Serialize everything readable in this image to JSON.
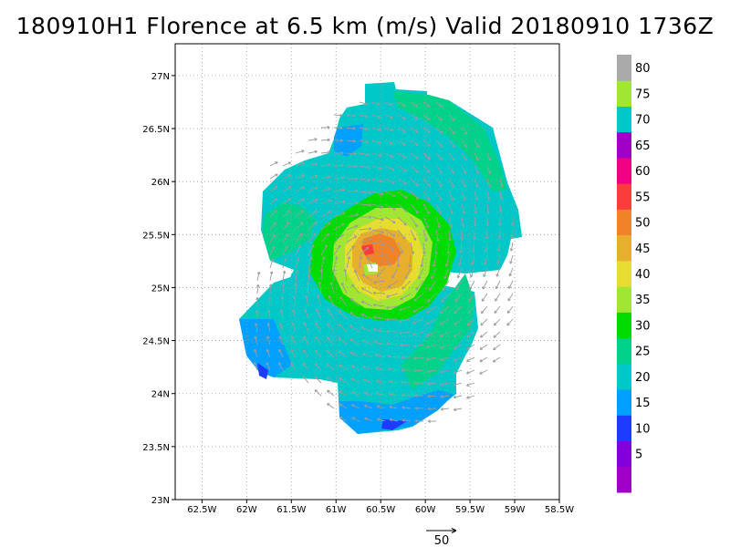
{
  "title": "180910H1 Florence at 6.5 km (m/s) Valid 20180910 1736Z",
  "map": {
    "lon_range": [
      -62.8,
      -58.5
    ],
    "lat_range": [
      23.0,
      27.3
    ],
    "lon_ticks": [
      {
        "value": -62.5,
        "label": "62.5W"
      },
      {
        "value": -62.0,
        "label": "62W"
      },
      {
        "value": -61.5,
        "label": "61.5W"
      },
      {
        "value": -61.0,
        "label": "61W"
      },
      {
        "value": -60.5,
        "label": "60.5W"
      },
      {
        "value": -60.0,
        "label": "60W"
      },
      {
        "value": -59.5,
        "label": "59.5W"
      },
      {
        "value": -59.0,
        "label": "59W"
      },
      {
        "value": -58.5,
        "label": "58.5W"
      }
    ],
    "lat_ticks": [
      {
        "value": 23.0,
        "label": "23N"
      },
      {
        "value": 23.5,
        "label": "23.5N"
      },
      {
        "value": 24.0,
        "label": "24N"
      },
      {
        "value": 24.5,
        "label": "24.5N"
      },
      {
        "value": 25.0,
        "label": "25N"
      },
      {
        "value": 25.5,
        "label": "25.5N"
      },
      {
        "value": 26.0,
        "label": "26N"
      },
      {
        "value": 26.5,
        "label": "26.5N"
      },
      {
        "value": 27.0,
        "label": "27N"
      }
    ],
    "grid": true,
    "storm_center": {
      "lon": -60.55,
      "lat": 25.22
    }
  },
  "colorbar": {
    "levels": [
      {
        "label": "",
        "color": "#a000c8"
      },
      {
        "label": "5",
        "color": "#8200dc"
      },
      {
        "label": "10",
        "color": "#1e3cff"
      },
      {
        "label": "15",
        "color": "#00a0ff"
      },
      {
        "label": "20",
        "color": "#00c8c8"
      },
      {
        "label": "25",
        "color": "#00d28c"
      },
      {
        "label": "30",
        "color": "#00dc00"
      },
      {
        "label": "35",
        "color": "#a0e632"
      },
      {
        "label": "40",
        "color": "#e6dc32"
      },
      {
        "label": "45",
        "color": "#e6af2d"
      },
      {
        "label": "50",
        "color": "#f08228"
      },
      {
        "label": "55",
        "color": "#fa3c3c"
      },
      {
        "label": "60",
        "color": "#f00082"
      },
      {
        "label": "65",
        "color": "#a000c8"
      },
      {
        "label": "70",
        "color": "#00c8c8"
      },
      {
        "label": "75",
        "color": "#a0e632"
      },
      {
        "label": "80",
        "color": "#aaaaaa"
      }
    ]
  },
  "reference_vector": {
    "label": "50"
  }
}
